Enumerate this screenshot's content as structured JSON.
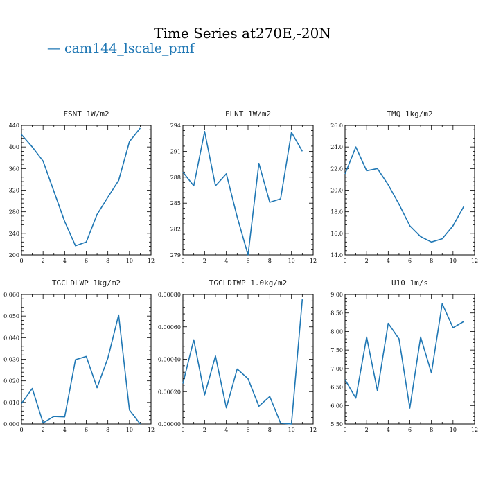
{
  "figure": {
    "title": "Time Series at270E,-20N",
    "legend": [
      {
        "label": "cam144_lscale_pmf",
        "color": "#1f77b4"
      }
    ],
    "line_color": "#1f77b4"
  },
  "chart_data": [
    {
      "type": "line",
      "title": "FSNT   1W/m2",
      "x": [
        0,
        1,
        2,
        3,
        4,
        5,
        6,
        7,
        8,
        9,
        10,
        11
      ],
      "series": [
        {
          "name": "cam144_lscale_pmf",
          "values": [
            423,
            400,
            374,
            318,
            262,
            217,
            224,
            275,
            307,
            338,
            410,
            435
          ]
        }
      ],
      "xlim": [
        0,
        12
      ],
      "ylim": [
        200,
        440
      ],
      "xticks": [
        0,
        2,
        4,
        6,
        8,
        10,
        12
      ],
      "xtick_labels": [
        "0",
        "2",
        "4",
        "6",
        "8",
        "10",
        "12"
      ],
      "yticks": [
        200,
        240,
        280,
        320,
        360,
        400,
        440
      ],
      "ytick_labels": [
        "200",
        "240",
        "280",
        "320",
        "360",
        "400",
        "440"
      ]
    },
    {
      "type": "line",
      "title": "FLNT   1W/m2",
      "x": [
        0,
        1,
        2,
        3,
        4,
        5,
        6,
        7,
        8,
        9,
        10,
        11
      ],
      "series": [
        {
          "name": "cam144_lscale_pmf",
          "values": [
            288.6,
            287.0,
            293.3,
            287.0,
            288.4,
            283.4,
            279.0,
            289.6,
            285.1,
            285.5,
            293.2,
            291.0
          ]
        }
      ],
      "xlim": [
        0,
        12
      ],
      "ylim": [
        279,
        294
      ],
      "xticks": [
        0,
        2,
        4,
        6,
        8,
        10,
        12
      ],
      "xtick_labels": [
        "0",
        "2",
        "4",
        "6",
        "8",
        "10",
        "12"
      ],
      "yticks": [
        279,
        282,
        285,
        288,
        291,
        294
      ],
      "ytick_labels": [
        "279",
        "282",
        "285",
        "288",
        "291",
        "294"
      ]
    },
    {
      "type": "line",
      "title": "TMQ   1kg/m2",
      "x": [
        0,
        1,
        2,
        3,
        4,
        5,
        6,
        7,
        8,
        9,
        10,
        11
      ],
      "series": [
        {
          "name": "cam144_lscale_pmf",
          "values": [
            21.5,
            24.0,
            21.8,
            22.0,
            20.5,
            18.7,
            16.7,
            15.7,
            15.2,
            15.5,
            16.7,
            18.5
          ]
        }
      ],
      "xlim": [
        0,
        12
      ],
      "ylim": [
        14,
        26
      ],
      "xticks": [
        0,
        2,
        4,
        6,
        8,
        10,
        12
      ],
      "xtick_labels": [
        "0",
        "2",
        "4",
        "6",
        "8",
        "10",
        "12"
      ],
      "yticks": [
        14,
        16,
        18,
        20,
        22,
        24,
        26
      ],
      "ytick_labels": [
        "14.0",
        "16.0",
        "18.0",
        "20.0",
        "22.0",
        "24.0",
        "26.0"
      ]
    },
    {
      "type": "line",
      "title": "TGCLDLWP   1kg/m2",
      "x": [
        0,
        1,
        2,
        3,
        4,
        5,
        6,
        7,
        8,
        9,
        10,
        11
      ],
      "series": [
        {
          "name": "cam144_lscale_pmf",
          "values": [
            0.0095,
            0.0165,
            0.0005,
            0.0035,
            0.0033,
            0.0298,
            0.0313,
            0.0168,
            0.0305,
            0.0505,
            0.0065,
            0.0
          ]
        }
      ],
      "xlim": [
        0,
        12
      ],
      "ylim": [
        0,
        0.06
      ],
      "xticks": [
        0,
        2,
        4,
        6,
        8,
        10,
        12
      ],
      "xtick_labels": [
        "0",
        "2",
        "4",
        "6",
        "8",
        "10",
        "12"
      ],
      "yticks": [
        0,
        0.01,
        0.02,
        0.03,
        0.04,
        0.05,
        0.06
      ],
      "ytick_labels": [
        "0.000",
        "0.010",
        "0.020",
        "0.030",
        "0.040",
        "0.050",
        "0.060"
      ]
    },
    {
      "type": "line",
      "title": "TGCLDIWP   1.0kg/m2",
      "x": [
        0,
        1,
        2,
        3,
        4,
        5,
        6,
        7,
        8,
        9,
        10,
        11
      ],
      "series": [
        {
          "name": "cam144_lscale_pmf",
          "values": [
            0.00025,
            0.00052,
            0.00018,
            0.00042,
            0.0001,
            0.00034,
            0.00028,
            0.00011,
            0.00017,
            5e-06,
            0.0,
            0.00077
          ]
        }
      ],
      "xlim": [
        0,
        12
      ],
      "ylim": [
        0,
        0.0008
      ],
      "xticks": [
        0,
        2,
        4,
        6,
        8,
        10,
        12
      ],
      "xtick_labels": [
        "0",
        "2",
        "4",
        "6",
        "8",
        "10",
        "12"
      ],
      "yticks": [
        0,
        0.0002,
        0.0004,
        0.0006,
        0.0008
      ],
      "ytick_labels": [
        "0.00000",
        "0.00020",
        "0.00040",
        "0.00060",
        "0.00080"
      ]
    },
    {
      "type": "line",
      "title": "U10   1m/s",
      "x": [
        0,
        1,
        2,
        3,
        4,
        5,
        6,
        7,
        8,
        9,
        10,
        11
      ],
      "series": [
        {
          "name": "cam144_lscale_pmf",
          "values": [
            6.7,
            6.2,
            7.85,
            6.4,
            8.22,
            7.8,
            5.93,
            7.85,
            6.88,
            8.75,
            8.1,
            8.27
          ]
        }
      ],
      "xlim": [
        0,
        12
      ],
      "ylim": [
        5.5,
        9.0
      ],
      "xticks": [
        0,
        2,
        4,
        6,
        8,
        10,
        12
      ],
      "xtick_labels": [
        "0",
        "2",
        "4",
        "6",
        "8",
        "10",
        "12"
      ],
      "yticks": [
        5.5,
        6.0,
        6.5,
        7.0,
        7.5,
        8.0,
        8.5,
        9.0
      ],
      "ytick_labels": [
        "5.50",
        "6.00",
        "6.50",
        "7.00",
        "7.50",
        "8.00",
        "8.50",
        "9.00"
      ]
    }
  ]
}
